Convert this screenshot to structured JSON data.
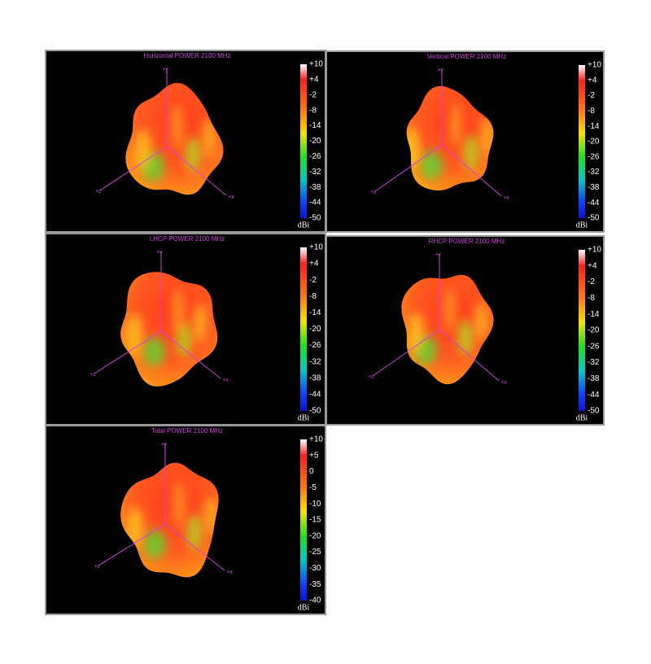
{
  "panels": [
    {
      "title": "Horizontal POWER 2100  MHz",
      "scale": [
        "+10",
        "+4",
        "-2",
        "-8",
        "-14",
        "-20",
        "-26",
        "-32",
        "-38",
        "-44",
        "-50"
      ],
      "unit": "dBi",
      "axes": [
        "+y",
        "+z",
        "+x"
      ]
    },
    {
      "title": "Vertical POWER 2100  MHz",
      "scale": [
        "+10",
        "+4",
        "-2",
        "-8",
        "-14",
        "-20",
        "-26",
        "-32",
        "-38",
        "-44",
        "-50"
      ],
      "unit": "dBi",
      "axes": [
        "+y",
        "+z",
        "+x"
      ]
    },
    {
      "title": "LHCP POWER 2100  MHz",
      "scale": [
        "+10",
        "+4",
        "-2",
        "-8",
        "-14",
        "-20",
        "-26",
        "-32",
        "-38",
        "-44",
        "-50"
      ],
      "unit": "dBi",
      "axes": [
        "+y",
        "+z",
        "+x"
      ]
    },
    {
      "title": "RHCP POWER 2100  MHz",
      "scale": [
        "+10",
        "+4",
        "-2",
        "-8",
        "-14",
        "-20",
        "-26",
        "-32",
        "-38",
        "-44",
        "-50"
      ],
      "unit": "dBi",
      "axes": [
        "+y",
        "+z",
        "+x"
      ]
    },
    {
      "title": "Total POWER 2100  MHz",
      "scale": [
        "+10",
        "+5",
        "0",
        "-5",
        "-10",
        "-15",
        "-20",
        "-25",
        "-30",
        "-35",
        "-40"
      ],
      "unit": "dBi",
      "axes": [
        "+y",
        "+z",
        "+x"
      ]
    }
  ]
}
